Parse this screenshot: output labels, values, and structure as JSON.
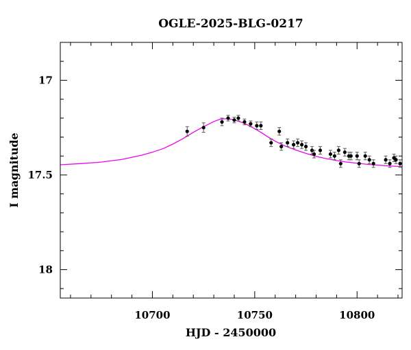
{
  "chart_data": {
    "type": "scatter",
    "title": "OGLE-2025-BLG-0217",
    "xlabel": "HJD - 2450000",
    "ylabel": "I magnitude",
    "xlim": [
      10655,
      10822
    ],
    "ylim": [
      18.15,
      16.8
    ],
    "y_inverted": true,
    "x_ticks": [
      10700,
      10750,
      10800
    ],
    "x_tick_labels": [
      "10700",
      "10750",
      "10800"
    ],
    "y_ticks": [
      17,
      17.5,
      18
    ],
    "y_tick_labels": [
      "17",
      "17.5",
      "18"
    ],
    "grid": false,
    "model_color": "#ee00ee",
    "point_color": "#000000",
    "errorbar_color": "#555555",
    "model_curve": {
      "name": "",
      "type": "line",
      "x": [
        10655,
        10665,
        10675,
        10685,
        10695,
        10700,
        10705,
        10710,
        10715,
        10720,
        10725,
        10730,
        10733,
        10736,
        10739,
        10742,
        10745,
        10748,
        10752,
        10756,
        10760,
        10765,
        10770,
        10775,
        10780,
        10785,
        10790,
        10795,
        10800,
        10805,
        10810,
        10815,
        10822
      ],
      "y": [
        17.446,
        17.44,
        17.432,
        17.418,
        17.395,
        17.38,
        17.362,
        17.337,
        17.308,
        17.275,
        17.245,
        17.218,
        17.206,
        17.203,
        17.207,
        17.216,
        17.228,
        17.244,
        17.268,
        17.296,
        17.322,
        17.348,
        17.368,
        17.386,
        17.402,
        17.414,
        17.424,
        17.432,
        17.438,
        17.444,
        17.448,
        17.452,
        17.456
      ]
    },
    "series": [
      {
        "name": "",
        "type": "scatter",
        "x": [
          10717,
          10725,
          10734,
          10737,
          10740,
          10742,
          10745,
          10748,
          10751,
          10753,
          10758,
          10762,
          10763,
          10766,
          10769,
          10771,
          10773,
          10775,
          10778,
          10779,
          10782,
          10787,
          10789,
          10791,
          10792,
          10794,
          10796,
          10797,
          10800,
          10801,
          10804,
          10806,
          10808,
          10814,
          10816,
          10818,
          10819,
          10821
        ],
        "y": [
          17.27,
          17.25,
          17.22,
          17.2,
          17.21,
          17.2,
          17.22,
          17.23,
          17.24,
          17.24,
          17.33,
          17.27,
          17.35,
          17.33,
          17.34,
          17.33,
          17.34,
          17.35,
          17.37,
          17.39,
          17.37,
          17.39,
          17.4,
          17.37,
          17.44,
          17.38,
          17.4,
          17.4,
          17.4,
          17.44,
          17.4,
          17.42,
          17.44,
          17.42,
          17.44,
          17.41,
          17.42,
          17.44
        ],
        "err": [
          0.025,
          0.025,
          0.02,
          0.015,
          0.015,
          0.015,
          0.015,
          0.015,
          0.02,
          0.02,
          0.02,
          0.02,
          0.02,
          0.02,
          0.02,
          0.02,
          0.02,
          0.02,
          0.02,
          0.02,
          0.02,
          0.02,
          0.02,
          0.02,
          0.02,
          0.02,
          0.02,
          0.02,
          0.02,
          0.02,
          0.02,
          0.02,
          0.02,
          0.02,
          0.02,
          0.02,
          0.02,
          0.02
        ]
      }
    ]
  }
}
